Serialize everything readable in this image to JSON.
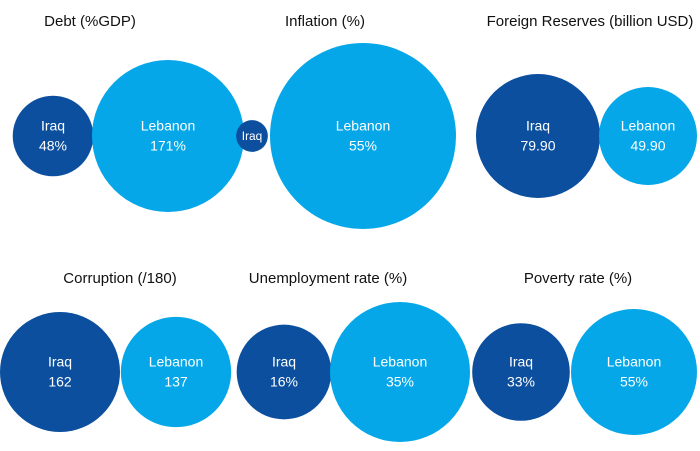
{
  "chart_data": [
    {
      "type": "bubble",
      "title": "Debt (%GDP)",
      "categories": [
        "Iraq",
        "Lebanon"
      ],
      "values": [
        48,
        171
      ],
      "value_labels": [
        "48%",
        "171%"
      ],
      "colors": [
        "#0b4f9e",
        "#05a7e8"
      ]
    },
    {
      "type": "bubble",
      "title": "Inflation (%)",
      "categories": [
        "Iraq",
        "Lebanon"
      ],
      "values": [
        1.6,
        55
      ],
      "value_labels": [
        null,
        "55%"
      ],
      "colors": [
        "#0b4f9e",
        "#05a7e8"
      ]
    },
    {
      "type": "bubble",
      "title": "Foreign Reserves (billion USD)",
      "categories": [
        "Iraq",
        "Lebanon"
      ],
      "values": [
        79.9,
        49.9
      ],
      "value_labels": [
        "79.90",
        "49.90"
      ],
      "colors": [
        "#0b4f9e",
        "#05a7e8"
      ]
    },
    {
      "type": "bubble",
      "title": "Corruption (/180)",
      "categories": [
        "Iraq",
        "Lebanon"
      ],
      "values": [
        162,
        137
      ],
      "colors": [
        "#0b4f9e",
        "#05a7e8"
      ]
    },
    {
      "type": "bubble",
      "title": "Unemployment rate (%)",
      "categories": [
        "Iraq",
        "Lebanon"
      ],
      "values": [
        16,
        35
      ],
      "value_labels": [
        "16%",
        "35%"
      ],
      "colors": [
        "#0b4f9e",
        "#05a7e8"
      ]
    },
    {
      "type": "bubble",
      "title": "Poverty rate (%)",
      "categories": [
        "Iraq",
        "Lebanon"
      ],
      "values": [
        33,
        55
      ],
      "value_labels": [
        "33%",
        "55%"
      ],
      "colors": [
        "#0b4f9e",
        "#05a7e8"
      ]
    }
  ]
}
